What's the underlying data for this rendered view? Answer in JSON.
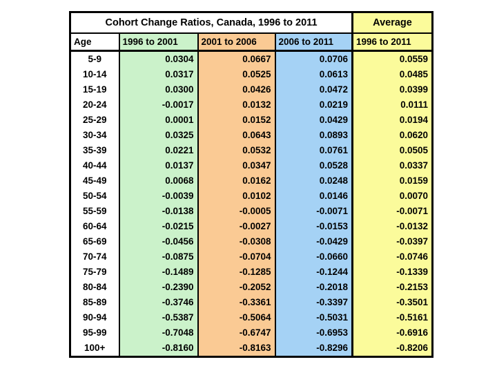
{
  "page": {
    "background_color": "#ffffff"
  },
  "table": {
    "title": "Cohort Change Ratios, Canada, 1996 to 2011",
    "average_header": "Average",
    "title_cell_color": "#ffffff",
    "border_color": "#000000",
    "text_color": "#000000",
    "columns": [
      {
        "key": "age",
        "label": "Age",
        "color": "#ffffff"
      },
      {
        "key": "p1",
        "label": "1996 to 2001",
        "color": "#cbf2ca"
      },
      {
        "key": "p2",
        "label": "2001 to 2006",
        "color": "#faca94"
      },
      {
        "key": "p3",
        "label": "2006 to 2011",
        "color": "#a5d2f5"
      },
      {
        "key": "avg",
        "label": "1996 to 2011",
        "color": "#fbfb9b"
      }
    ],
    "rows": [
      {
        "age": "5-9",
        "values": [
          "0.0304",
          "0.0667",
          "0.0706",
          "0.0559"
        ]
      },
      {
        "age": "10-14",
        "values": [
          "0.0317",
          "0.0525",
          "0.0613",
          "0.0485"
        ]
      },
      {
        "age": "15-19",
        "values": [
          "0.0300",
          "0.0426",
          "0.0472",
          "0.0399"
        ]
      },
      {
        "age": "20-24",
        "values": [
          "-0.0017",
          "0.0132",
          "0.0219",
          "0.0111"
        ]
      },
      {
        "age": "25-29",
        "values": [
          "0.0001",
          "0.0152",
          "0.0429",
          "0.0194"
        ]
      },
      {
        "age": "30-34",
        "values": [
          "0.0325",
          "0.0643",
          "0.0893",
          "0.0620"
        ]
      },
      {
        "age": "35-39",
        "values": [
          "0.0221",
          "0.0532",
          "0.0761",
          "0.0505"
        ]
      },
      {
        "age": "40-44",
        "values": [
          "0.0137",
          "0.0347",
          "0.0528",
          "0.0337"
        ]
      },
      {
        "age": "45-49",
        "values": [
          "0.0068",
          "0.0162",
          "0.0248",
          "0.0159"
        ]
      },
      {
        "age": "50-54",
        "values": [
          "-0.0039",
          "0.0102",
          "0.0146",
          "0.0070"
        ]
      },
      {
        "age": "55-59",
        "values": [
          "-0.0138",
          "-0.0005",
          "-0.0071",
          "-0.0071"
        ]
      },
      {
        "age": "60-64",
        "values": [
          "-0.0215",
          "-0.0027",
          "-0.0153",
          "-0.0132"
        ]
      },
      {
        "age": "65-69",
        "values": [
          "-0.0456",
          "-0.0308",
          "-0.0429",
          "-0.0397"
        ]
      },
      {
        "age": "70-74",
        "values": [
          "-0.0875",
          "-0.0704",
          "-0.0660",
          "-0.0746"
        ]
      },
      {
        "age": "75-79",
        "values": [
          "-0.1489",
          "-0.1285",
          "-0.1244",
          "-0.1339"
        ]
      },
      {
        "age": "80-84",
        "values": [
          "-0.2390",
          "-0.2052",
          "-0.2018",
          "-0.2153"
        ]
      },
      {
        "age": "85-89",
        "values": [
          "-0.3746",
          "-0.3361",
          "-0.3397",
          "-0.3501"
        ]
      },
      {
        "age": "90-94",
        "values": [
          "-0.5387",
          "-0.5064",
          "-0.5031",
          "-0.5161"
        ]
      },
      {
        "age": "95-99",
        "values": [
          "-0.7048",
          "-0.6747",
          "-0.6953",
          "-0.6916"
        ]
      },
      {
        "age": "100+",
        "values": [
          "-0.8160",
          "-0.8163",
          "-0.8296",
          "-0.8206"
        ]
      }
    ]
  },
  "chart_data": {
    "type": "table",
    "title": "Cohort Change Ratios, Canada, 1996 to 2011",
    "categories": [
      "5-9",
      "10-14",
      "15-19",
      "20-24",
      "25-29",
      "30-34",
      "35-39",
      "40-44",
      "45-49",
      "50-54",
      "55-59",
      "60-64",
      "65-69",
      "70-74",
      "75-79",
      "80-84",
      "85-89",
      "90-94",
      "95-99",
      "100+"
    ],
    "series": [
      {
        "name": "1996 to 2001",
        "values": [
          0.0304,
          0.0317,
          0.03,
          -0.0017,
          0.0001,
          0.0325,
          0.0221,
          0.0137,
          0.0068,
          -0.0039,
          -0.0138,
          -0.0215,
          -0.0456,
          -0.0875,
          -0.1489,
          -0.239,
          -0.3746,
          -0.5387,
          -0.7048,
          -0.816
        ]
      },
      {
        "name": "2001 to 2006",
        "values": [
          0.0667,
          0.0525,
          0.0426,
          0.0132,
          0.0152,
          0.0643,
          0.0532,
          0.0347,
          0.0162,
          0.0102,
          -0.0005,
          -0.0027,
          -0.0308,
          -0.0704,
          -0.1285,
          -0.2052,
          -0.3361,
          -0.5064,
          -0.6747,
          -0.8163
        ]
      },
      {
        "name": "2006 to 2011",
        "values": [
          0.0706,
          0.0613,
          0.0472,
          0.0219,
          0.0429,
          0.0893,
          0.0761,
          0.0528,
          0.0248,
          0.0146,
          -0.0071,
          -0.0153,
          -0.0429,
          -0.066,
          -0.1244,
          -0.2018,
          -0.3397,
          -0.5031,
          -0.6953,
          -0.8296
        ]
      },
      {
        "name": "Average 1996 to 2011",
        "values": [
          0.0559,
          0.0485,
          0.0399,
          0.0111,
          0.0194,
          0.062,
          0.0505,
          0.0337,
          0.0159,
          0.007,
          -0.0071,
          -0.0132,
          -0.0397,
          -0.0746,
          -0.1339,
          -0.2153,
          -0.3501,
          -0.5161,
          -0.6916,
          -0.8206
        ]
      }
    ],
    "xlabel": "Age",
    "legend_position": "column headers"
  }
}
